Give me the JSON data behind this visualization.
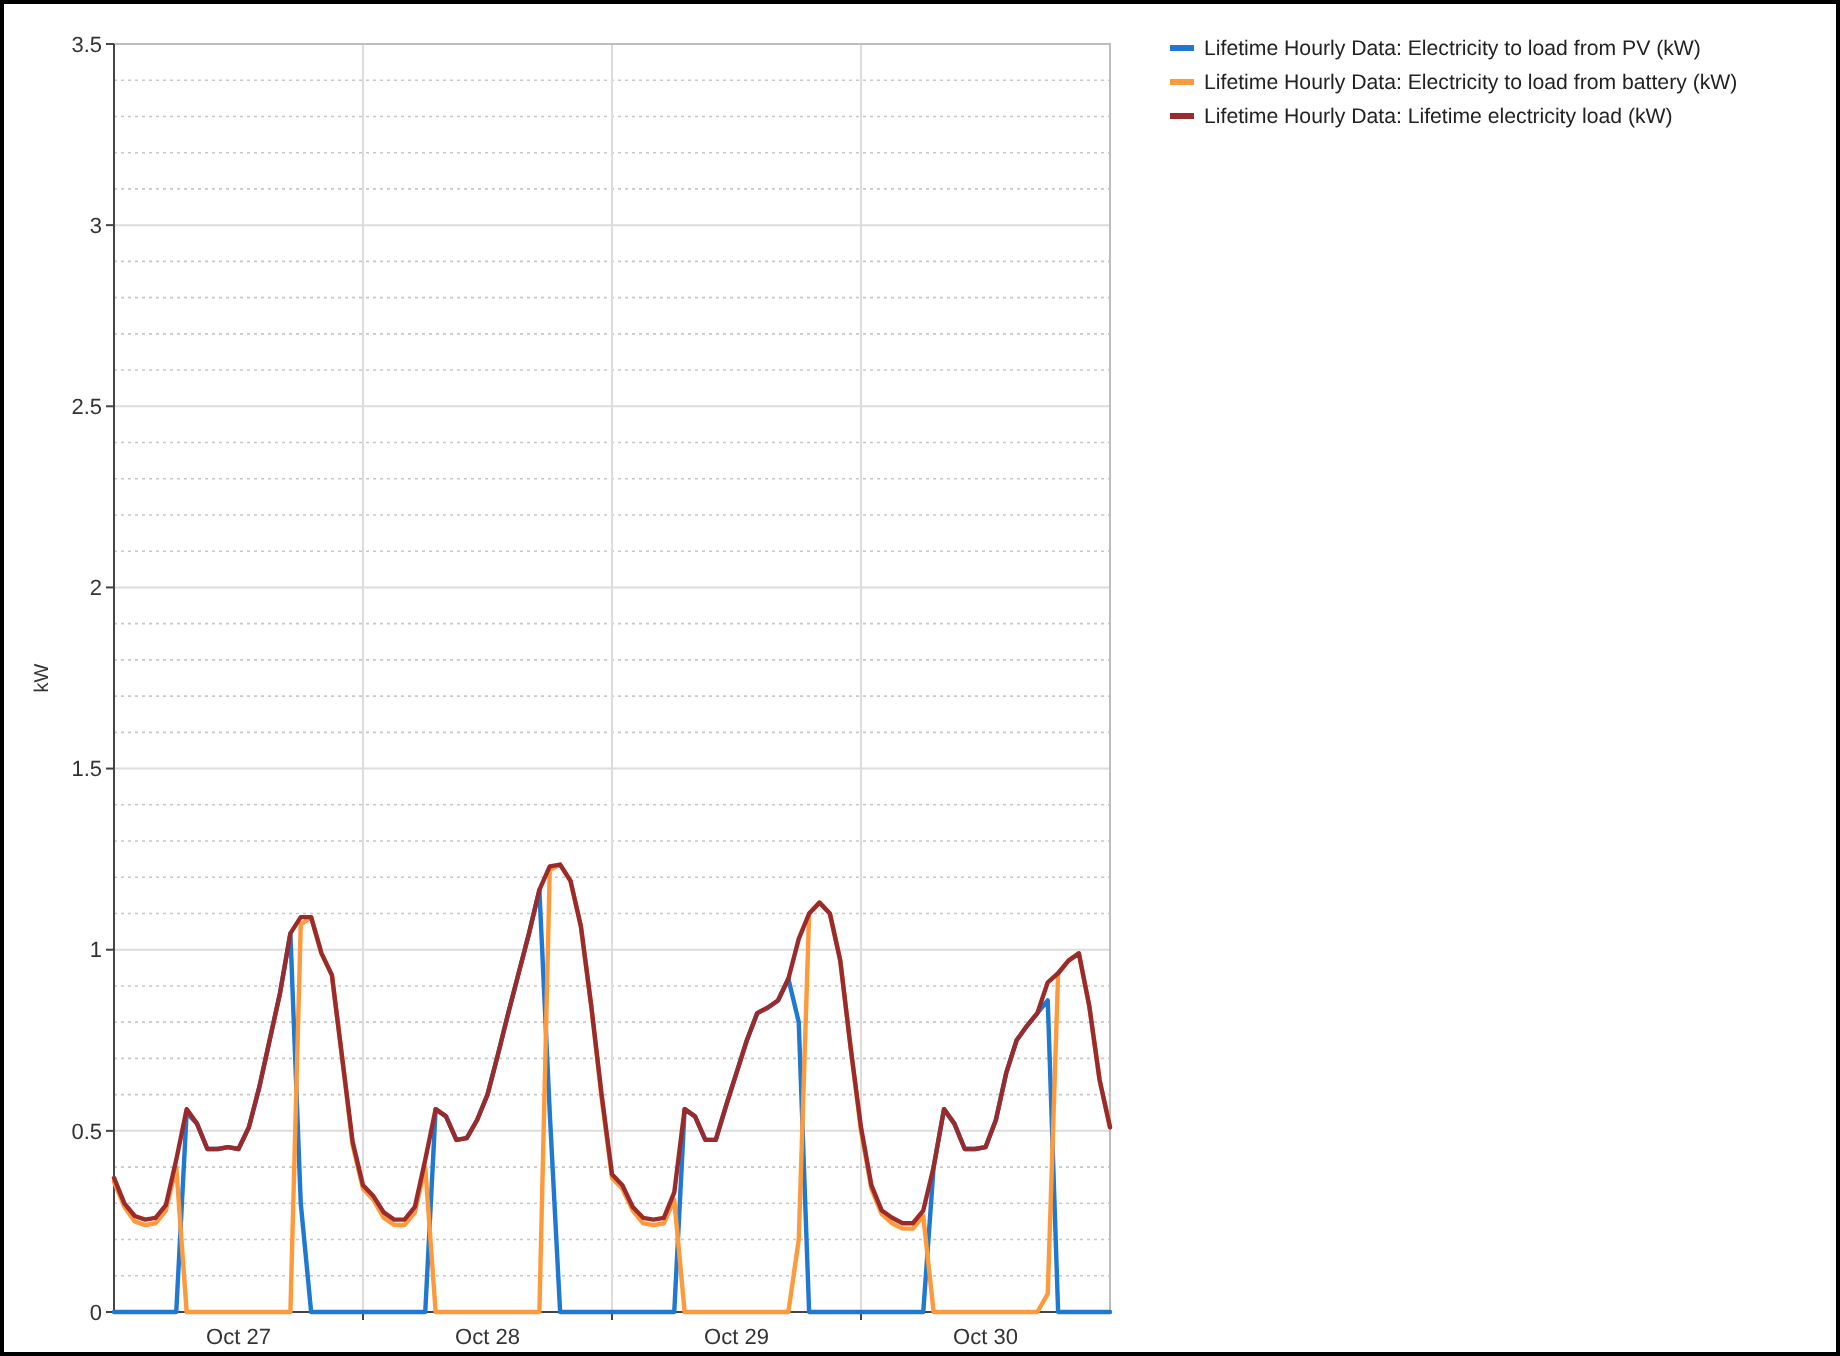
{
  "chart_data": {
    "type": "line",
    "ylabel": "kW",
    "categories": [
      null,
      null,
      null,
      null,
      null,
      null,
      null,
      null,
      null,
      null,
      null,
      null,
      "Oct 27",
      null,
      null,
      null,
      null,
      null,
      null,
      null,
      null,
      null,
      null,
      null,
      null,
      null,
      null,
      null,
      null,
      null,
      null,
      null,
      null,
      null,
      null,
      null,
      "Oct 28",
      null,
      null,
      null,
      null,
      null,
      null,
      null,
      null,
      null,
      null,
      null,
      null,
      null,
      null,
      null,
      null,
      null,
      null,
      null,
      null,
      null,
      null,
      null,
      "Oct 29",
      null,
      null,
      null,
      null,
      null,
      null,
      null,
      null,
      null,
      null,
      null,
      null,
      null,
      null,
      null,
      null,
      null,
      null,
      null,
      null,
      null,
      null,
      null,
      "Oct 30",
      null,
      null,
      null,
      null,
      null,
      null,
      null,
      null,
      null,
      null,
      null,
      null
    ],
    "ylim": [
      0,
      3.5
    ],
    "yticks": [
      0,
      0.5,
      1,
      1.5,
      2,
      2.5,
      3,
      3.5
    ],
    "grid": true,
    "legend": "top right",
    "line_style": "solid",
    "marker": "none",
    "series": [
      {
        "name": "Lifetime Hourly Data: Electricity to load from PV (kW)",
        "color": "#1f78d1",
        "values": [
          0,
          0,
          0,
          0,
          0,
          0,
          0,
          0.55,
          0.52,
          0.45,
          0.45,
          0.455,
          0.45,
          0.51,
          0.62,
          0.75,
          0.88,
          1.045,
          0.3,
          0,
          0,
          0,
          0,
          0,
          0,
          0,
          0,
          0,
          0,
          0,
          0,
          0.56,
          0.54,
          0.475,
          0.48,
          0.53,
          0.6,
          0.71,
          0.825,
          0.935,
          1.045,
          1.165,
          0.55,
          0,
          0,
          0,
          0,
          0,
          0,
          0,
          0,
          0,
          0,
          0,
          0,
          0.56,
          0.54,
          0.475,
          0.475,
          0.57,
          0.66,
          0.75,
          0.825,
          0.84,
          0.86,
          0.92,
          0.8,
          0,
          0,
          0,
          0,
          0,
          0,
          0,
          0,
          0,
          0,
          0,
          0,
          0.4,
          0.56,
          0.52,
          0.45,
          0.45,
          0.455,
          0.53,
          0.66,
          0.75,
          0.79,
          0.825,
          0.86,
          0,
          0,
          0,
          0,
          0,
          0
        ]
      },
      {
        "name": "Lifetime Hourly Data: Electricity to load from battery (kW)",
        "color": "#ff9a3c",
        "values": [
          0.36,
          0.29,
          0.25,
          0.24,
          0.245,
          0.28,
          0.4,
          0,
          0,
          0,
          0,
          0,
          0,
          0,
          0,
          0,
          0,
          0,
          1.07,
          1.09,
          0.99,
          0.93,
          0.7,
          0.46,
          0.34,
          0.31,
          0.26,
          0.24,
          0.24,
          0.275,
          0.4,
          0,
          0,
          0,
          0,
          0,
          0,
          0,
          0,
          0,
          0,
          0,
          1.22,
          1.235,
          1.19,
          1.065,
          0.845,
          0.59,
          0.37,
          0.34,
          0.28,
          0.245,
          0.24,
          0.245,
          0.31,
          0,
          0,
          0,
          0,
          0,
          0,
          0,
          0,
          0,
          0,
          0,
          0.2,
          1.1,
          1.13,
          1.1,
          0.97,
          0.73,
          0.5,
          0.34,
          0.27,
          0.245,
          0.23,
          0.23,
          0.265,
          0,
          0,
          0,
          0,
          0,
          0,
          0,
          0,
          0,
          0,
          0,
          0.05,
          0.935,
          0.97,
          0.99,
          0.845,
          0.64,
          0.51
        ]
      },
      {
        "name": "Lifetime Hourly Data: Lifetime electricity load (kW)",
        "color": "#9b2b2b",
        "values": [
          0.37,
          0.3,
          0.265,
          0.255,
          0.26,
          0.295,
          0.42,
          0.56,
          0.52,
          0.45,
          0.45,
          0.455,
          0.45,
          0.51,
          0.62,
          0.75,
          0.88,
          1.045,
          1.09,
          1.09,
          0.99,
          0.93,
          0.7,
          0.47,
          0.35,
          0.32,
          0.275,
          0.255,
          0.255,
          0.29,
          0.42,
          0.56,
          0.54,
          0.475,
          0.48,
          0.53,
          0.6,
          0.71,
          0.825,
          0.935,
          1.045,
          1.165,
          1.23,
          1.235,
          1.19,
          1.065,
          0.845,
          0.6,
          0.38,
          0.35,
          0.29,
          0.26,
          0.255,
          0.26,
          0.33,
          0.56,
          0.54,
          0.475,
          0.475,
          0.57,
          0.66,
          0.75,
          0.825,
          0.84,
          0.86,
          0.92,
          1.03,
          1.1,
          1.13,
          1.1,
          0.97,
          0.73,
          0.51,
          0.35,
          0.28,
          0.26,
          0.245,
          0.245,
          0.28,
          0.4,
          0.56,
          0.52,
          0.45,
          0.45,
          0.455,
          0.53,
          0.66,
          0.75,
          0.79,
          0.825,
          0.91,
          0.935,
          0.97,
          0.99,
          0.845,
          0.64,
          0.51
        ]
      }
    ]
  }
}
